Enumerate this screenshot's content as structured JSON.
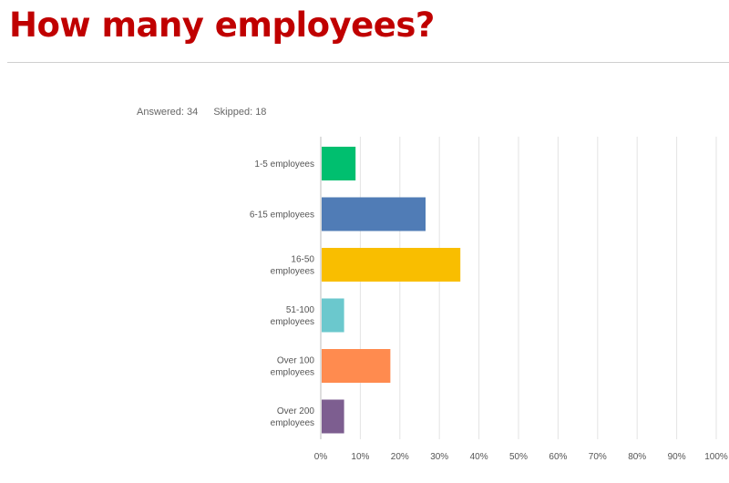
{
  "page": {
    "title": "How many employees?"
  },
  "summary": {
    "answered": "Answered: 34",
    "skipped": "Skipped: 18"
  },
  "chart_data": {
    "type": "bar",
    "orientation": "horizontal",
    "categories": [
      "1-5 employees",
      "6-15 employees",
      "16-50 employees",
      "51-100 employees",
      "Over 100 employees",
      "Over 200 employees"
    ],
    "category_lines": [
      [
        "1-5 employees"
      ],
      [
        "6-15 employees"
      ],
      [
        "16-50",
        "employees"
      ],
      [
        "51-100",
        "employees"
      ],
      [
        "Over 100",
        "employees"
      ],
      [
        "Over 200",
        "employees"
      ]
    ],
    "values": [
      8.8,
      26.5,
      35.3,
      5.9,
      17.6,
      5.9
    ],
    "colors": [
      "#00bf6f",
      "#507cb6",
      "#f9be00",
      "#6bc8cd",
      "#ff8b4f",
      "#7d5e90"
    ],
    "xlim": [
      0,
      100
    ],
    "xticks": [
      "0%",
      "10%",
      "20%",
      "30%",
      "40%",
      "50%",
      "60%",
      "70%",
      "80%",
      "90%",
      "100%"
    ],
    "grid": true,
    "legend": "none"
  }
}
